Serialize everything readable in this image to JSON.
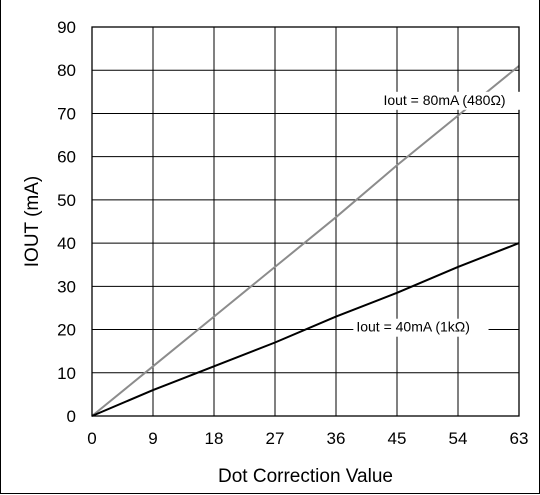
{
  "chart_data": {
    "type": "line",
    "title": "",
    "xlabel": "Dot Correction Value",
    "ylabel": "IOUT (mA)",
    "xlim": [
      0,
      63
    ],
    "ylim": [
      0,
      90
    ],
    "xticks": [
      "0",
      "9",
      "18",
      "27",
      "36",
      "45",
      "54",
      "63"
    ],
    "yticks": [
      "0",
      "10",
      "20",
      "30",
      "40",
      "50",
      "60",
      "70",
      "80",
      "90"
    ],
    "grid": true,
    "series": [
      {
        "name": "Iout = 80mA (480Ω)",
        "color": "#8c8c8c",
        "x": [
          0,
          9,
          18,
          27,
          36,
          45,
          54,
          63
        ],
        "y": [
          0,
          11.5,
          23,
          34.5,
          46,
          58,
          69.5,
          81
        ]
      },
      {
        "name": "Iout = 40mA (1kΩ)",
        "color": "#000000",
        "x": [
          0,
          9,
          18,
          27,
          36,
          45,
          54,
          63
        ],
        "y": [
          0,
          6,
          11.5,
          17,
          23,
          28.5,
          34.5,
          40
        ]
      }
    ],
    "annotations": [
      {
        "text": "Iout = 80mA (480Ω)",
        "x": 43,
        "y": 72
      },
      {
        "text": "Iout = 40mA (1kΩ)",
        "x": 39,
        "y": 19.5
      }
    ]
  }
}
